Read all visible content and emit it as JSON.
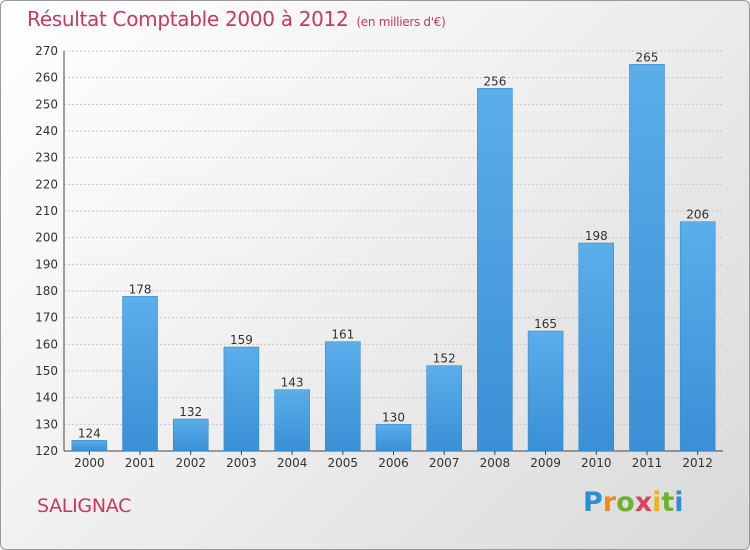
{
  "chart_data": {
    "type": "bar",
    "title": "Résultat Comptable 2000 à 2012",
    "subtitle": "(en milliers d'€)",
    "categories": [
      "2000",
      "2001",
      "2002",
      "2003",
      "2004",
      "2005",
      "2006",
      "2007",
      "2008",
      "2009",
      "2010",
      "2011",
      "2012"
    ],
    "values": [
      124,
      178,
      132,
      159,
      143,
      161,
      130,
      152,
      256,
      165,
      198,
      265,
      206
    ],
    "ylim": [
      120,
      270
    ],
    "yticks": [
      120,
      130,
      140,
      150,
      160,
      170,
      180,
      190,
      200,
      210,
      220,
      230,
      240,
      250,
      260,
      270
    ],
    "grid": true,
    "xlabel": "",
    "ylabel": "",
    "bar_color": "#3a8fd6"
  },
  "footer": {
    "commune": "SALIGNAC",
    "logo_letters": [
      "P",
      "r",
      "o",
      "x",
      "i",
      "t",
      "i"
    ]
  }
}
